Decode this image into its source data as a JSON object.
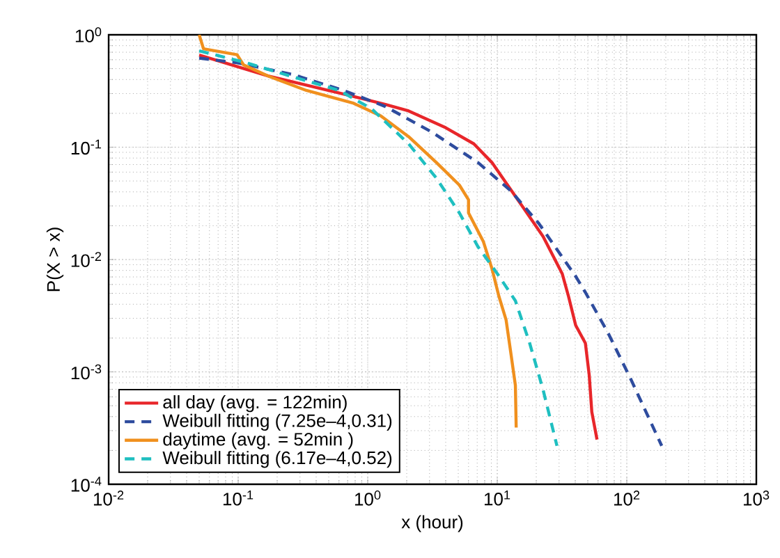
{
  "chart_data": {
    "type": "line",
    "xlabel": "x (hour)",
    "ylabel": "P(X > x)",
    "log": "xy",
    "grid": true,
    "legend": "bottom left",
    "xlim": [
      0.01,
      1000
    ],
    "ylim": [
      0.0001,
      1
    ],
    "xticks": [
      {
        "value": 0.01,
        "label": "10$^{-2}$"
      },
      {
        "value": 0.1,
        "label": "10$^{-1}$"
      },
      {
        "value": 1,
        "label": "10$^{0}$"
      },
      {
        "value": 10,
        "label": "10$^{1}$"
      },
      {
        "value": 100,
        "label": "10$^{2}$"
      },
      {
        "value": 1000,
        "label": "10$^{3}$"
      }
    ],
    "yticks": [
      {
        "value": 0.0001,
        "label": "10$^{-4}$"
      },
      {
        "value": 0.001,
        "label": "10$^{-3}$"
      },
      {
        "value": 0.01,
        "label": "10$^{-2}$"
      },
      {
        "value": 0.1,
        "label": "10$^{-1}$"
      },
      {
        "value": 1,
        "label": "10$^{0}$"
      }
    ],
    "series": [
      {
        "name": "all day (avg. = 122min)",
        "color": "#e8262a",
        "line_style": "solid",
        "x": [
          0.05,
          0.17,
          0.71,
          1.37,
          2.07,
          4.0,
          6.6,
          9.1,
          16.2,
          22.6,
          31.7,
          35.5,
          40.3,
          47.9,
          51.3,
          53.7,
          58.9
        ],
        "values": [
          0.66,
          0.43,
          0.29,
          0.24,
          0.21,
          0.149,
          0.107,
          0.073,
          0.028,
          0.016,
          0.0075,
          0.0047,
          0.0026,
          0.0018,
          0.00093,
          0.00044,
          0.00025
        ]
      },
      {
        "name": "Weibull fitting (7.25e–4,0.31)",
        "color": "#2e4c9e",
        "line_style": "dashed",
        "x": [
          0.05,
          0.098,
          0.26,
          0.65,
          1.37,
          3.13,
          7.1,
          12.7,
          20.9,
          40.3,
          47.9,
          72,
          108,
          186
        ],
        "values": [
          0.62,
          0.565,
          0.445,
          0.32,
          0.23,
          0.136,
          0.073,
          0.041,
          0.021,
          0.0071,
          0.0051,
          0.0022,
          0.00085,
          0.00022
        ]
      },
      {
        "name": "daytime (avg. = 52min )",
        "color": "#f0901e",
        "line_style": "solid",
        "x": [
          0.05,
          0.054,
          0.098,
          0.11,
          0.174,
          0.336,
          0.77,
          1.26,
          2.07,
          3.39,
          5.1,
          6.0,
          6.0,
          7.8,
          9.1,
          10.3,
          11.7,
          12.7,
          13.8,
          14.0
        ],
        "values": [
          1.0,
          0.75,
          0.665,
          0.54,
          0.425,
          0.32,
          0.247,
          0.19,
          0.124,
          0.073,
          0.046,
          0.034,
          0.026,
          0.0145,
          0.0083,
          0.0047,
          0.0029,
          0.0015,
          0.00076,
          0.00032
        ]
      },
      {
        "name": "Weibull fitting (6.17e–4,0.52)",
        "color": "#1fbfc0",
        "line_style": "dashed",
        "x": [
          0.05,
          0.115,
          0.26,
          0.6,
          1.07,
          2.07,
          3.39,
          5.1,
          7.1,
          10,
          13.8,
          17.8,
          22.6,
          28.9
        ],
        "values": [
          0.72,
          0.565,
          0.425,
          0.32,
          0.22,
          0.107,
          0.053,
          0.026,
          0.013,
          0.0075,
          0.0043,
          0.0018,
          0.00069,
          0.00022
        ]
      }
    ]
  }
}
